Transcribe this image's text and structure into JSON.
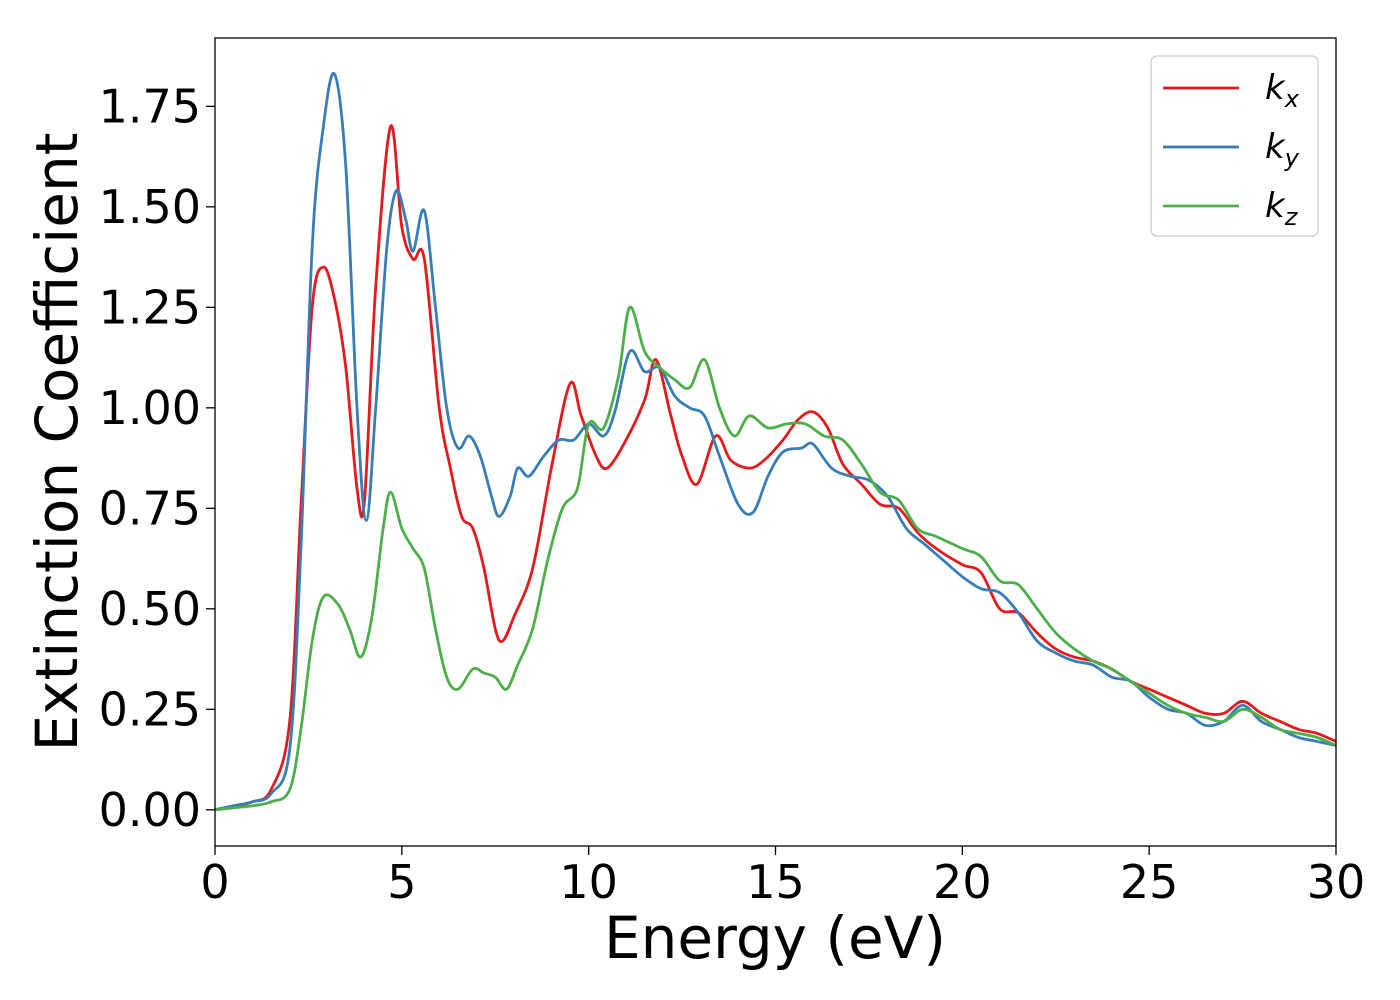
{
  "chart_data": {
    "type": "line",
    "title": "",
    "xlabel": "Energy (eV)",
    "ylabel": "Extinction Coefficient",
    "xlim": [
      0,
      30
    ],
    "ylim": [
      -0.09,
      1.92
    ],
    "xticks": [
      0,
      5,
      10,
      15,
      20,
      25,
      30
    ],
    "xtick_labels": [
      "0",
      "5",
      "10",
      "15",
      "20",
      "25",
      "30"
    ],
    "yticks": [
      0.0,
      0.25,
      0.5,
      0.75,
      1.0,
      1.25,
      1.5,
      1.75
    ],
    "ytick_labels": [
      "0.00",
      "0.25",
      "0.50",
      "0.75",
      "1.00",
      "1.25",
      "1.50",
      "1.75"
    ],
    "grid": false,
    "legend_position": "top-right",
    "series": [
      {
        "name": "k",
        "subscript": "x",
        "color": "#e41a1c",
        "points": [
          [
            0,
            0
          ],
          [
            0.5,
            0.01
          ],
          [
            1,
            0.02
          ],
          [
            1.5,
            0.05
          ],
          [
            2,
            0.22
          ],
          [
            2.3,
            0.75
          ],
          [
            2.6,
            1.25
          ],
          [
            2.9,
            1.35
          ],
          [
            3.2,
            1.27
          ],
          [
            3.5,
            1.1
          ],
          [
            3.8,
            0.8
          ],
          [
            4.0,
            0.77
          ],
          [
            4.3,
            1.3
          ],
          [
            4.7,
            1.7
          ],
          [
            5.0,
            1.45
          ],
          [
            5.3,
            1.37
          ],
          [
            5.6,
            1.37
          ],
          [
            6.0,
            1.0
          ],
          [
            6.3,
            0.85
          ],
          [
            6.6,
            0.73
          ],
          [
            6.9,
            0.7
          ],
          [
            7.2,
            0.6
          ],
          [
            7.5,
            0.45
          ],
          [
            7.7,
            0.42
          ],
          [
            8.0,
            0.48
          ],
          [
            8.5,
            0.6
          ],
          [
            9.0,
            0.85
          ],
          [
            9.5,
            1.06
          ],
          [
            9.8,
            0.98
          ],
          [
            10.2,
            0.88
          ],
          [
            10.5,
            0.85
          ],
          [
            11.0,
            0.92
          ],
          [
            11.5,
            1.02
          ],
          [
            11.8,
            1.12
          ],
          [
            12.2,
            0.98
          ],
          [
            12.5,
            0.88
          ],
          [
            12.9,
            0.81
          ],
          [
            13.4,
            0.93
          ],
          [
            13.8,
            0.87
          ],
          [
            14.3,
            0.85
          ],
          [
            14.7,
            0.87
          ],
          [
            15.2,
            0.92
          ],
          [
            15.6,
            0.97
          ],
          [
            16.0,
            0.99
          ],
          [
            16.4,
            0.95
          ],
          [
            16.8,
            0.86
          ],
          [
            17.3,
            0.81
          ],
          [
            17.8,
            0.76
          ],
          [
            18.3,
            0.75
          ],
          [
            18.8,
            0.69
          ],
          [
            19.3,
            0.65
          ],
          [
            20.0,
            0.61
          ],
          [
            20.5,
            0.59
          ],
          [
            21.0,
            0.5
          ],
          [
            21.5,
            0.49
          ],
          [
            22.0,
            0.44
          ],
          [
            22.5,
            0.4
          ],
          [
            23.0,
            0.38
          ],
          [
            23.5,
            0.37
          ],
          [
            24.0,
            0.35
          ],
          [
            24.5,
            0.32
          ],
          [
            25.0,
            0.3
          ],
          [
            25.5,
            0.28
          ],
          [
            26.0,
            0.26
          ],
          [
            26.5,
            0.24
          ],
          [
            27.0,
            0.24
          ],
          [
            27.5,
            0.27
          ],
          [
            28.0,
            0.24
          ],
          [
            28.5,
            0.22
          ],
          [
            29.0,
            0.2
          ],
          [
            29.5,
            0.19
          ],
          [
            30.0,
            0.17
          ]
        ]
      },
      {
        "name": "k",
        "subscript": "y",
        "color": "#377eb8",
        "points": [
          [
            0,
            0
          ],
          [
            0.5,
            0.01
          ],
          [
            1,
            0.02
          ],
          [
            1.5,
            0.04
          ],
          [
            2,
            0.15
          ],
          [
            2.3,
            0.65
          ],
          [
            2.6,
            1.4
          ],
          [
            2.9,
            1.7
          ],
          [
            3.2,
            1.83
          ],
          [
            3.5,
            1.6
          ],
          [
            3.8,
            1.0
          ],
          [
            4.05,
            0.72
          ],
          [
            4.3,
            1.0
          ],
          [
            4.6,
            1.4
          ],
          [
            4.85,
            1.54
          ],
          [
            5.1,
            1.47
          ],
          [
            5.3,
            1.39
          ],
          [
            5.6,
            1.49
          ],
          [
            5.9,
            1.25
          ],
          [
            6.2,
            1.0
          ],
          [
            6.5,
            0.9
          ],
          [
            6.8,
            0.93
          ],
          [
            7.1,
            0.88
          ],
          [
            7.4,
            0.78
          ],
          [
            7.6,
            0.73
          ],
          [
            7.9,
            0.78
          ],
          [
            8.1,
            0.85
          ],
          [
            8.4,
            0.83
          ],
          [
            8.8,
            0.88
          ],
          [
            9.2,
            0.92
          ],
          [
            9.6,
            0.92
          ],
          [
            10.0,
            0.96
          ],
          [
            10.4,
            0.93
          ],
          [
            10.7,
            0.99
          ],
          [
            11.1,
            1.14
          ],
          [
            11.5,
            1.09
          ],
          [
            11.9,
            1.1
          ],
          [
            12.3,
            1.03
          ],
          [
            12.7,
            1.0
          ],
          [
            13.1,
            0.98
          ],
          [
            13.5,
            0.88
          ],
          [
            14.0,
            0.76
          ],
          [
            14.4,
            0.74
          ],
          [
            14.8,
            0.83
          ],
          [
            15.2,
            0.89
          ],
          [
            15.7,
            0.9
          ],
          [
            16.0,
            0.91
          ],
          [
            16.5,
            0.85
          ],
          [
            17.0,
            0.83
          ],
          [
            17.5,
            0.82
          ],
          [
            18.0,
            0.78
          ],
          [
            18.5,
            0.7
          ],
          [
            19.0,
            0.66
          ],
          [
            19.5,
            0.62
          ],
          [
            20.0,
            0.58
          ],
          [
            20.5,
            0.55
          ],
          [
            21.0,
            0.54
          ],
          [
            21.5,
            0.49
          ],
          [
            22.0,
            0.42
          ],
          [
            22.5,
            0.39
          ],
          [
            23.0,
            0.37
          ],
          [
            23.5,
            0.36
          ],
          [
            24.0,
            0.33
          ],
          [
            24.5,
            0.32
          ],
          [
            25.0,
            0.28
          ],
          [
            25.5,
            0.25
          ],
          [
            26.0,
            0.24
          ],
          [
            26.5,
            0.21
          ],
          [
            27.0,
            0.22
          ],
          [
            27.5,
            0.26
          ],
          [
            28.0,
            0.22
          ],
          [
            28.5,
            0.2
          ],
          [
            29.0,
            0.18
          ],
          [
            29.5,
            0.17
          ],
          [
            30.0,
            0.16
          ]
        ]
      },
      {
        "name": "k",
        "subscript": "z",
        "color": "#4daf4a",
        "points": [
          [
            0,
            0
          ],
          [
            0.5,
            0.005
          ],
          [
            1,
            0.01
          ],
          [
            1.5,
            0.02
          ],
          [
            2,
            0.05
          ],
          [
            2.3,
            0.2
          ],
          [
            2.6,
            0.42
          ],
          [
            2.9,
            0.53
          ],
          [
            3.3,
            0.51
          ],
          [
            3.6,
            0.45
          ],
          [
            3.9,
            0.38
          ],
          [
            4.2,
            0.48
          ],
          [
            4.5,
            0.7
          ],
          [
            4.7,
            0.79
          ],
          [
            5.0,
            0.7
          ],
          [
            5.3,
            0.65
          ],
          [
            5.6,
            0.6
          ],
          [
            5.9,
            0.45
          ],
          [
            6.2,
            0.33
          ],
          [
            6.5,
            0.3
          ],
          [
            6.9,
            0.35
          ],
          [
            7.2,
            0.34
          ],
          [
            7.5,
            0.33
          ],
          [
            7.8,
            0.3
          ],
          [
            8.1,
            0.36
          ],
          [
            8.5,
            0.45
          ],
          [
            8.9,
            0.62
          ],
          [
            9.3,
            0.75
          ],
          [
            9.7,
            0.8
          ],
          [
            10.0,
            0.96
          ],
          [
            10.4,
            0.95
          ],
          [
            10.8,
            1.08
          ],
          [
            11.1,
            1.25
          ],
          [
            11.5,
            1.14
          ],
          [
            11.9,
            1.1
          ],
          [
            12.3,
            1.07
          ],
          [
            12.7,
            1.05
          ],
          [
            13.1,
            1.12
          ],
          [
            13.5,
            1.0
          ],
          [
            13.9,
            0.93
          ],
          [
            14.3,
            0.98
          ],
          [
            14.8,
            0.95
          ],
          [
            15.3,
            0.96
          ],
          [
            15.8,
            0.96
          ],
          [
            16.3,
            0.93
          ],
          [
            16.8,
            0.92
          ],
          [
            17.3,
            0.86
          ],
          [
            17.8,
            0.79
          ],
          [
            18.3,
            0.77
          ],
          [
            18.8,
            0.7
          ],
          [
            19.3,
            0.68
          ],
          [
            20.0,
            0.65
          ],
          [
            20.5,
            0.63
          ],
          [
            21.0,
            0.57
          ],
          [
            21.5,
            0.56
          ],
          [
            22.0,
            0.5
          ],
          [
            22.5,
            0.44
          ],
          [
            23.0,
            0.4
          ],
          [
            23.5,
            0.37
          ],
          [
            24.0,
            0.35
          ],
          [
            24.5,
            0.32
          ],
          [
            25.0,
            0.29
          ],
          [
            25.5,
            0.26
          ],
          [
            26.0,
            0.24
          ],
          [
            26.5,
            0.23
          ],
          [
            27.0,
            0.22
          ],
          [
            27.5,
            0.25
          ],
          [
            28.0,
            0.23
          ],
          [
            28.5,
            0.2
          ],
          [
            29.0,
            0.19
          ],
          [
            29.5,
            0.18
          ],
          [
            30.0,
            0.16
          ]
        ]
      }
    ]
  }
}
